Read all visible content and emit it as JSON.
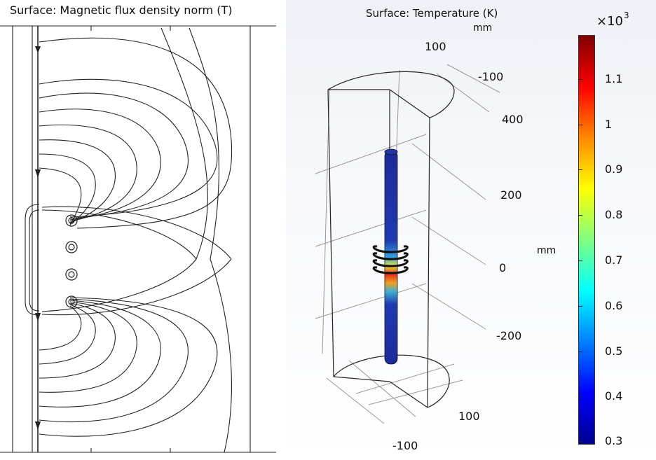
{
  "left_plot": {
    "title": "Surface: Magnetic flux density norm (T)"
  },
  "right_plot": {
    "title": "Surface: Temperature (K)",
    "axis_unit_top": "mm",
    "axis_unit_side": "mm",
    "axis_ticks": {
      "top_x": "100",
      "top_y": "-100",
      "z": [
        "400",
        "200",
        "0",
        "-200"
      ],
      "bottom_x": "100",
      "bottom_y": "-100"
    },
    "colorbar": {
      "multiplier": "×10",
      "exponent": "3",
      "tick_labels": [
        "1.1",
        "1",
        "0.9",
        "0.8",
        "0.7",
        "0.6",
        "0.5",
        "0.4",
        "0.3"
      ],
      "colors": [
        "#7f0000",
        "#ff0000",
        "#ff8800",
        "#ffff00",
        "#80ff80",
        "#00ffff",
        "#0080ff",
        "#0000ff",
        "#00008f"
      ]
    }
  }
}
